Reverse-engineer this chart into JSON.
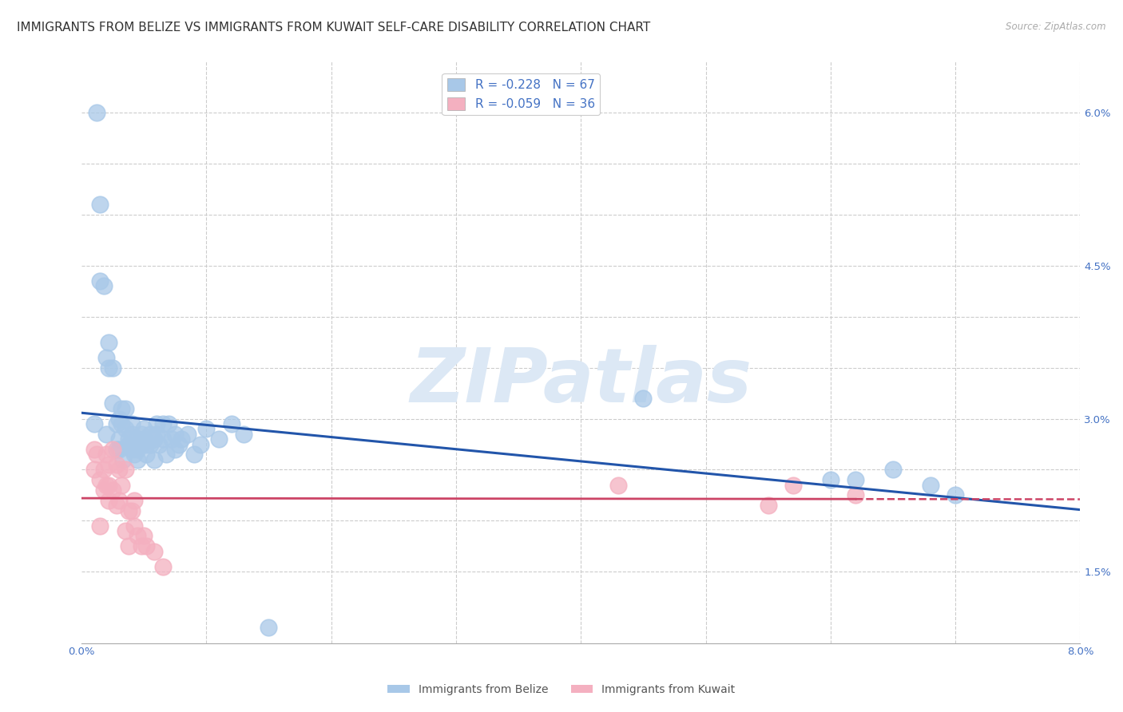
{
  "title": "IMMIGRANTS FROM BELIZE VS IMMIGRANTS FROM KUWAIT SELF-CARE DISABILITY CORRELATION CHART",
  "source": "Source: ZipAtlas.com",
  "watermark": "ZIPatlas",
  "belize_color": "#a8c8e8",
  "kuwait_color": "#f4b0c0",
  "belize_line_color": "#2255aa",
  "kuwait_line_color": "#cc4466",
  "legend_belize": "R = -0.228   N = 67",
  "legend_kuwait": "R = -0.059   N = 36",
  "legend_R_color": "#cc3333",
  "legend_N_color": "#2244cc",
  "belize_x": [
    0.001,
    0.0012,
    0.0015,
    0.0015,
    0.0018,
    0.002,
    0.002,
    0.0022,
    0.0022,
    0.0025,
    0.0025,
    0.0028,
    0.0028,
    0.003,
    0.003,
    0.003,
    0.0032,
    0.0032,
    0.0033,
    0.0035,
    0.0035,
    0.0038,
    0.0038,
    0.004,
    0.004,
    0.004,
    0.0042,
    0.0042,
    0.0045,
    0.0045,
    0.0045,
    0.0048,
    0.0048,
    0.005,
    0.005,
    0.0052,
    0.0052,
    0.0055,
    0.0055,
    0.0058,
    0.0058,
    0.006,
    0.006,
    0.0062,
    0.0065,
    0.0065,
    0.0068,
    0.007,
    0.0072,
    0.0075,
    0.0075,
    0.0078,
    0.008,
    0.0085,
    0.009,
    0.0095,
    0.01,
    0.011,
    0.012,
    0.013,
    0.015,
    0.045,
    0.06,
    0.062,
    0.065,
    0.068,
    0.07
  ],
  "belize_y": [
    0.0295,
    0.06,
    0.051,
    0.0435,
    0.043,
    0.036,
    0.0285,
    0.035,
    0.0375,
    0.0315,
    0.035,
    0.027,
    0.0295,
    0.03,
    0.028,
    0.027,
    0.0295,
    0.031,
    0.026,
    0.029,
    0.031,
    0.0275,
    0.028,
    0.027,
    0.0285,
    0.0295,
    0.0265,
    0.0275,
    0.027,
    0.028,
    0.026,
    0.0285,
    0.0275,
    0.028,
    0.029,
    0.0275,
    0.0265,
    0.0285,
    0.0275,
    0.028,
    0.026,
    0.0285,
    0.0295,
    0.0275,
    0.0295,
    0.028,
    0.0265,
    0.0295,
    0.028,
    0.0285,
    0.027,
    0.0275,
    0.028,
    0.0285,
    0.0265,
    0.0275,
    0.029,
    0.028,
    0.0295,
    0.0285,
    0.0095,
    0.032,
    0.024,
    0.024,
    0.025,
    0.0235,
    0.0225
  ],
  "kuwait_x": [
    0.001,
    0.001,
    0.0012,
    0.0015,
    0.0015,
    0.0018,
    0.0018,
    0.002,
    0.002,
    0.0022,
    0.0022,
    0.0022,
    0.0025,
    0.0025,
    0.0028,
    0.0028,
    0.003,
    0.003,
    0.0032,
    0.0035,
    0.0035,
    0.0038,
    0.0038,
    0.004,
    0.0042,
    0.0042,
    0.0045,
    0.0048,
    0.005,
    0.0052,
    0.0058,
    0.0065,
    0.043,
    0.055,
    0.057,
    0.062
  ],
  "kuwait_y": [
    0.025,
    0.027,
    0.0265,
    0.024,
    0.0195,
    0.025,
    0.023,
    0.0265,
    0.0235,
    0.0255,
    0.0235,
    0.022,
    0.027,
    0.023,
    0.0255,
    0.0215,
    0.025,
    0.022,
    0.0235,
    0.025,
    0.019,
    0.0175,
    0.021,
    0.021,
    0.022,
    0.0195,
    0.0185,
    0.0175,
    0.0185,
    0.0175,
    0.017,
    0.0155,
    0.0235,
    0.0215,
    0.0235,
    0.0225
  ],
  "xlim": [
    0.0,
    0.08
  ],
  "ylim": [
    0.008,
    0.065
  ],
  "title_fontsize": 11,
  "axis_label_fontsize": 10,
  "tick_fontsize": 9.5
}
